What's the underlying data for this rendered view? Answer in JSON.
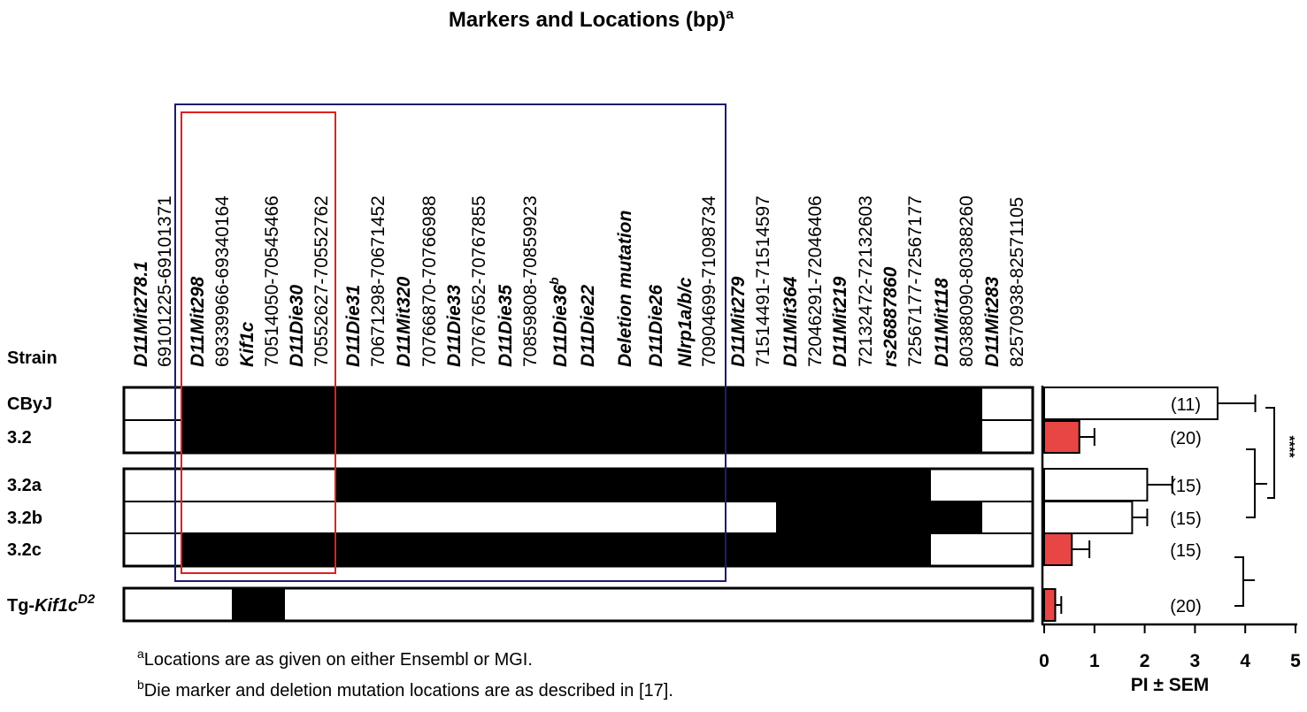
{
  "title": "Markers and Locations (bp)",
  "title_superscript": "a",
  "strain_header": "Strain",
  "markers": [
    {
      "name": "D11Mit278.1",
      "location": "69101225-69101371"
    },
    {
      "name": "D11Mit298",
      "location": "69339966-69340164"
    },
    {
      "name": "Kif1c",
      "location": "70514050-70545466"
    },
    {
      "name": "D11Die30",
      "location": "70552627-70552762"
    },
    {
      "name": "D11Die31",
      "location": "70671298-70671452"
    },
    {
      "name": "D11Mit320",
      "location": "70766870-70766988"
    },
    {
      "name": "D11Die33",
      "location": "70767652-70767855"
    },
    {
      "name": "D11Die35",
      "location": "70859808-70859923"
    },
    {
      "name": "D11Die36",
      "superscript": "b"
    },
    {
      "name": "D11Die22"
    },
    {
      "name": "Deletion mutation"
    },
    {
      "name": "D11Die26"
    },
    {
      "name": "Nlrp1a/b/c",
      "location": "70904699-71098734"
    },
    {
      "name": "D11Mit279",
      "location": "71514491-71514597"
    },
    {
      "name": "D11Mit364",
      "location": "72046291-72046406"
    },
    {
      "name": "D11Mit219",
      "location": "72132472-72132603"
    },
    {
      "name": "rs26887860",
      "location": "72567177-72567177"
    },
    {
      "name": "D11Mit118",
      "location": "80388090-80388260"
    },
    {
      "name": "D11Mit283",
      "location": "82570938-82571105"
    }
  ],
  "footnotes": [
    {
      "marker": "a",
      "text": "Locations are as given on either Ensembl or MGI."
    },
    {
      "marker": "b",
      "text": "Die marker and deletion mutation locations are as described in [17]."
    }
  ],
  "chart_data": {
    "type": "hbar",
    "categories": [
      "CByJ",
      "3.2",
      "3.2a",
      "3.2b",
      "3.2c",
      {
        "prefix": "Tg-",
        "italic": "Kif1c",
        "superscript": "D2"
      }
    ],
    "values": [
      3.45,
      0.7,
      2.05,
      1.75,
      0.55,
      0.22
    ],
    "errors": [
      0.75,
      0.3,
      0.5,
      0.3,
      0.35,
      0.12
    ],
    "colors": [
      "#ffffff",
      "#e84545",
      "#ffffff",
      "#ffffff",
      "#e84545",
      "#e84545"
    ],
    "n_labels": [
      "(11)",
      "(20)",
      "(15)",
      "(15)",
      "(15)",
      "(20)"
    ],
    "xlim": [
      0,
      5
    ],
    "xticks": [
      0,
      1,
      2,
      3,
      4,
      5
    ],
    "xlabel": "PI ± SEM",
    "significance": "****"
  }
}
